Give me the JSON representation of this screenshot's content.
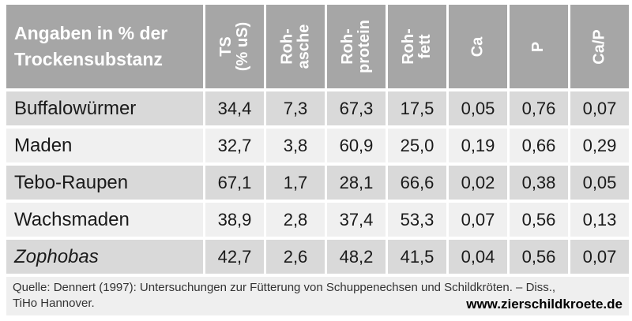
{
  "table": {
    "corner_header": "Angaben in % der\nTrockensubstanz",
    "columns": [
      "TS\n(% uS)",
      "Roh-\nasche",
      "Roh-\nprotein",
      "Roh-\nfett",
      "Ca",
      "P",
      "Ca/P"
    ],
    "rows": [
      {
        "label": "Buffalowürmer",
        "values": [
          "34,4",
          "7,3",
          "67,3",
          "17,5",
          "0,05",
          "0,76",
          "0,07"
        ]
      },
      {
        "label": "Maden",
        "values": [
          "32,7",
          "3,8",
          "60,9",
          "25,0",
          "0,19",
          "0,66",
          "0,29"
        ]
      },
      {
        "label": "Tebo-Raupen",
        "values": [
          "67,1",
          "1,7",
          "28,1",
          "66,6",
          "0,02",
          "0,38",
          "0,05"
        ]
      },
      {
        "label": "Wachsmaden",
        "values": [
          "38,9",
          "2,8",
          "37,4",
          "53,3",
          "0,07",
          "0,56",
          "0,13"
        ]
      },
      {
        "label": "Zophobas",
        "values": [
          "42,7",
          "2,6",
          "48,2",
          "41,5",
          "0,04",
          "0,56",
          "0,07"
        ]
      }
    ]
  },
  "footer": {
    "source_line1": "Quelle: Dennert (1997): Untersuchungen zur Fütterung von Schuppenechsen und Schildkröten. – Diss.,",
    "source_line2": "TiHo Hannover.",
    "website": "www.zierschildkroete.de"
  },
  "colors": {
    "header_bg": "#a6a6a6",
    "band_dark": "#d9d9d9",
    "band_light": "#f0f0f0",
    "footer_bg": "#efefef",
    "header_text": "#ffffff",
    "body_text": "#1a1a1a"
  }
}
